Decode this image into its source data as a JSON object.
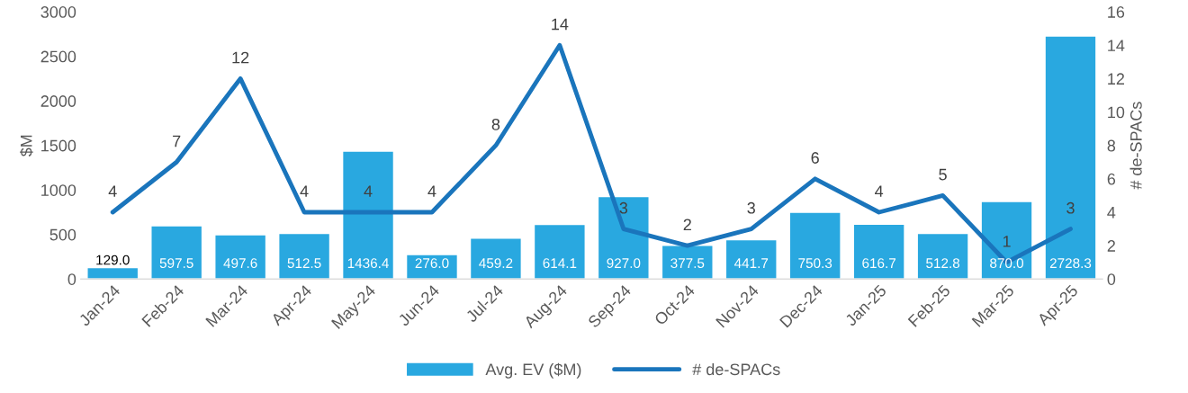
{
  "chart_data": {
    "type": "bar",
    "categories": [
      "Jan-24",
      "Feb-24",
      "Mar-24",
      "Apr-24",
      "May-24",
      "Jun-24",
      "Jul-24",
      "Aug-24",
      "Sep-24",
      "Oct-24",
      "Nov-24",
      "Dec-24",
      "Jan-25",
      "Feb-25",
      "Mar-25",
      "Apr-25"
    ],
    "series": [
      {
        "name": "Avg. EV ($M)",
        "color": "#29a8e0",
        "values": [
          129.0,
          597.5,
          497.6,
          512.5,
          1436.4,
          276.0,
          459.2,
          614.1,
          927.0,
          377.5,
          441.7,
          750.3,
          616.7,
          512.8,
          870.0,
          2728.3
        ],
        "value_labels": [
          "129.0",
          "597.5",
          "497.6",
          "512.5",
          "1436.4",
          "276.0",
          "459.2",
          "614.1",
          "927.0",
          "377.5",
          "441.7",
          "750.3",
          "616.7",
          "512.8",
          "870.0",
          "2728.3"
        ]
      },
      {
        "name": "# de-SPACs",
        "type": "line",
        "axis": "y2",
        "color": "#1a75bc",
        "values": [
          4,
          7,
          12,
          4,
          4,
          4,
          8,
          14,
          3,
          2,
          3,
          6,
          4,
          5,
          1,
          3
        ]
      }
    ],
    "ylabel": "$M",
    "y2label": "# de-SPACs",
    "ylim": [
      0,
      3000
    ],
    "yticks": [
      0,
      500,
      1000,
      1500,
      2000,
      2500,
      3000
    ],
    "y2lim": [
      0,
      16
    ],
    "y2ticks": [
      0,
      2,
      4,
      6,
      8,
      10,
      12,
      14,
      16
    ],
    "data_labels": true,
    "grid": false,
    "legend": "bottom",
    "marker": "none",
    "line_style": "solid"
  }
}
